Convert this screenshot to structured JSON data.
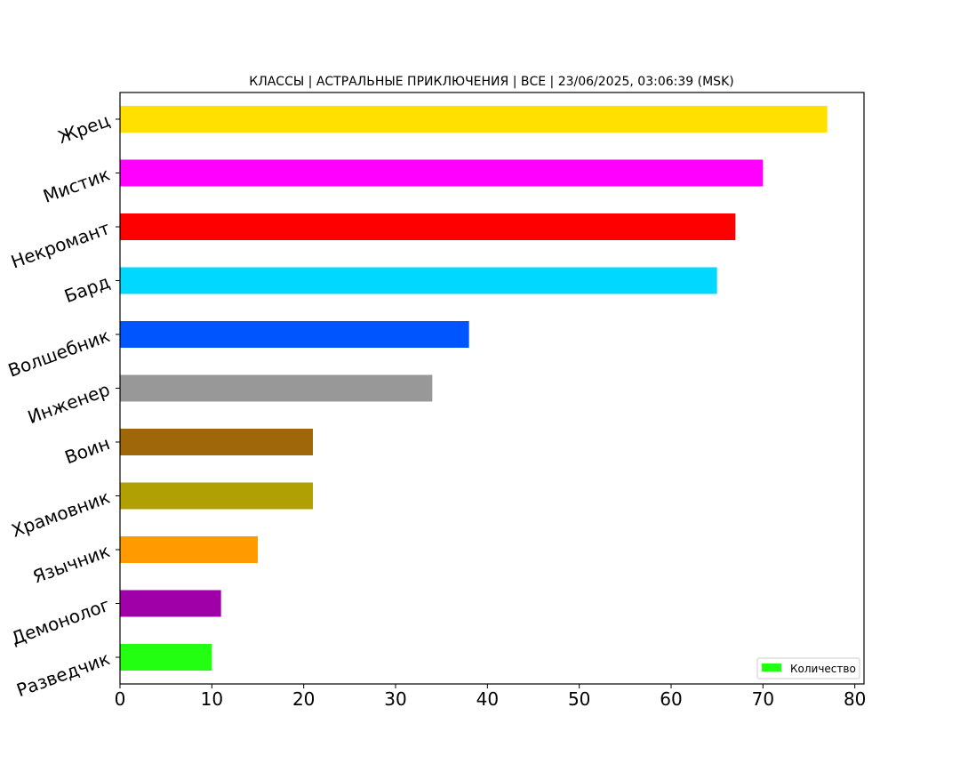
{
  "chart_data": {
    "type": "bar",
    "orientation": "horizontal",
    "title": "КЛАССЫ | АСТРАЛЬНЫЕ ПРИКЛЮЧЕНИЯ | ВСЕ | 23/06/2025, 03:06:39 (MSK)",
    "xlabel": "",
    "ylabel": "",
    "xlim": [
      0,
      81
    ],
    "xticks": [
      0,
      10,
      20,
      30,
      40,
      50,
      60,
      70,
      80
    ],
    "grid": false,
    "legend": {
      "placement": "bottom-right",
      "label": "Количество",
      "color": "#22ff10"
    },
    "categories": [
      "Жрец",
      "Мистик",
      "Некромант",
      "Бард",
      "Волшебник",
      "Инженер",
      "Воин",
      "Храмовник",
      "Язычник",
      "Демонолог",
      "Разведчик"
    ],
    "values": [
      77,
      70,
      67,
      65,
      38,
      34,
      21,
      21,
      15,
      11,
      10
    ],
    "colors": [
      "#ffe000",
      "#ff00ff",
      "#ff0000",
      "#00d8ff",
      "#0055ff",
      "#989898",
      "#a0660a",
      "#b0a003",
      "#ff9a00",
      "#a000a8",
      "#22ff10"
    ]
  }
}
